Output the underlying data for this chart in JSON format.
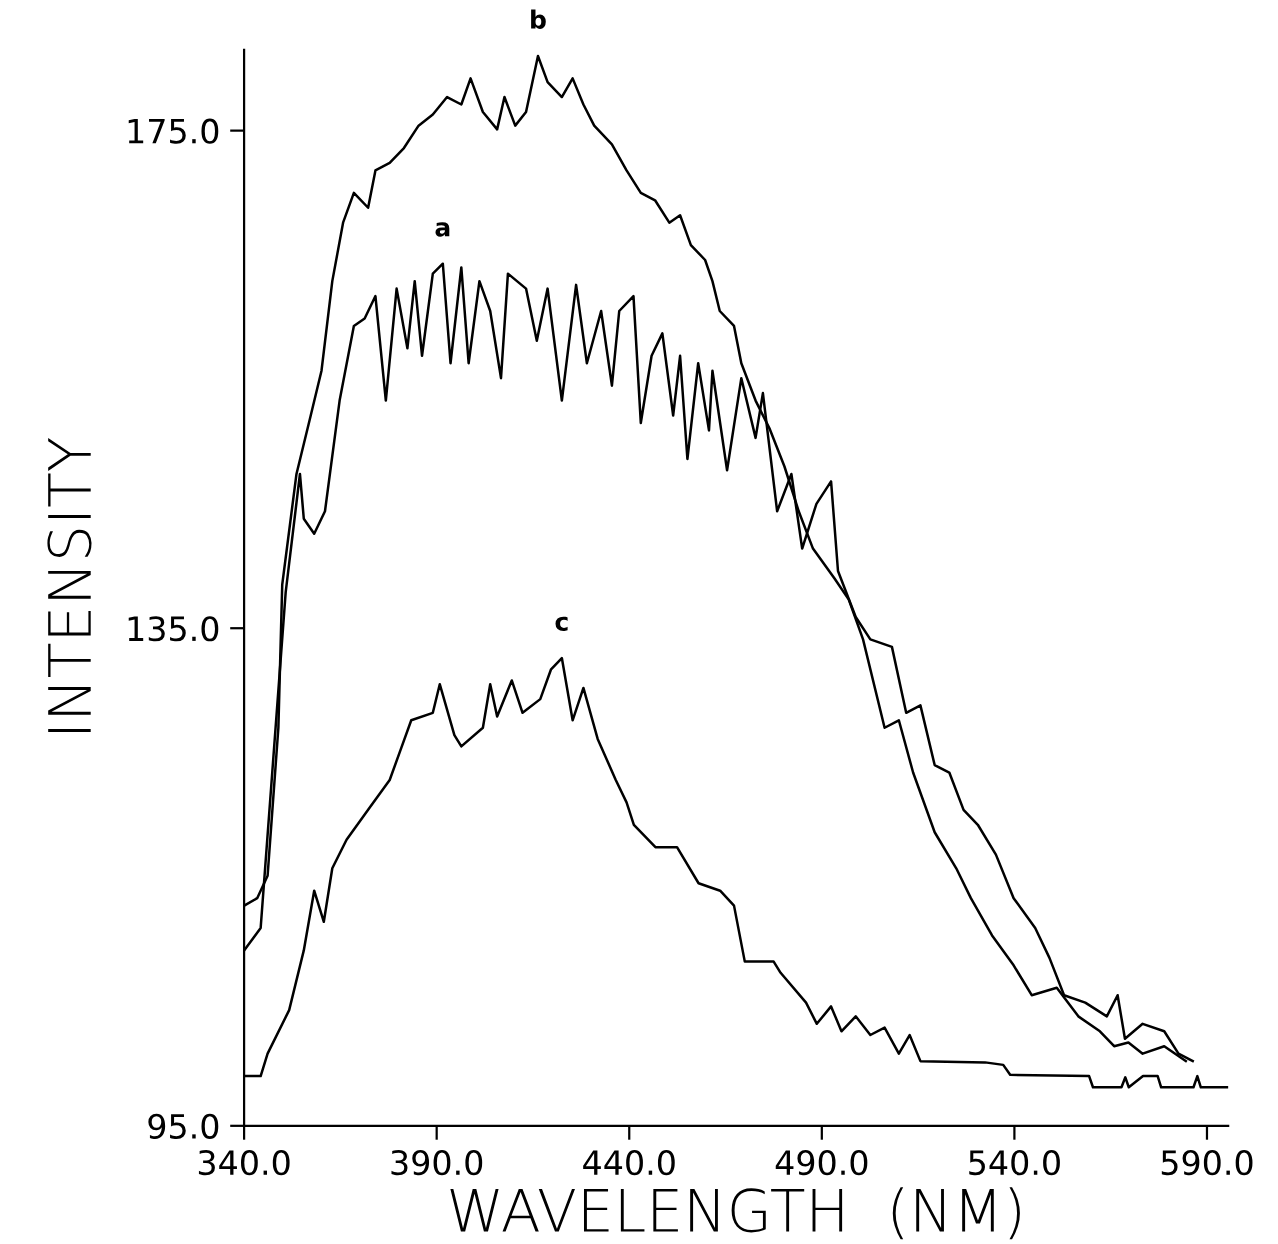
{
  "chart_data": {
    "type": "line",
    "xlabel": "WAVELENGTH  (NM)",
    "ylabel": "INTENSITY",
    "xlim": [
      340,
      595.5
    ],
    "ylim": [
      95,
      181.5
    ],
    "xticks": [
      {
        "value": 340,
        "label": "340.0"
      },
      {
        "value": 390,
        "label": "390.0"
      },
      {
        "value": 440,
        "label": "440.0"
      },
      {
        "value": 490,
        "label": "490.0"
      },
      {
        "value": 540,
        "label": "540.0"
      },
      {
        "value": 590,
        "label": "590.0"
      }
    ],
    "yticks": [
      {
        "value": 95,
        "label": "95.0"
      },
      {
        "value": 135,
        "label": "135.0"
      },
      {
        "value": 175,
        "label": "175.0"
      }
    ],
    "grid": false,
    "marker": "none",
    "line_style": "solid",
    "series": [
      {
        "name": "a",
        "color": "#000000",
        "x": [
          340,
          344.3,
          350.8,
          354.5,
          355.5,
          358.2,
          361.0,
          364.8,
          368.5,
          371.3,
          374.1,
          376.8,
          379.6,
          382.4,
          384.3,
          386.2,
          389.0,
          391.6,
          393.6,
          396.4,
          398.3,
          401.1,
          403.9,
          406.7,
          408.5,
          413.2,
          416.0,
          418.8,
          422.5,
          426.2,
          429.0,
          432.7,
          435.5,
          437.4,
          441.1,
          443.0,
          445.8,
          448.6,
          451.4,
          453.2,
          455.1,
          457.9,
          460.7,
          461.6,
          465.4,
          469.1,
          472.8,
          474.7,
          478.4,
          482.1,
          484.9,
          488.6,
          492.4,
          494.2,
          498.8,
          502.6,
          508.2,
          511.9,
          515.6,
          519.3,
          523.1,
          526.8,
          530.5,
          535.2,
          539.8,
          545.4,
          549.1,
          552.9,
          558.4,
          564.0,
          566.8,
          568.7,
          573.3,
          578.9,
          582.6,
          586.3
        ],
        "values": [
          109.1,
          110.9,
          137.9,
          147.4,
          143.8,
          142.6,
          144.4,
          153.3,
          159.3,
          159.9,
          161.7,
          153.3,
          162.3,
          157.5,
          162.9,
          156.9,
          163.5,
          164.3,
          156.3,
          164.0,
          156.3,
          162.9,
          160.5,
          155.1,
          163.5,
          162.3,
          158.1,
          162.3,
          153.3,
          162.6,
          156.3,
          160.5,
          154.5,
          160.5,
          161.7,
          151.5,
          156.9,
          158.7,
          152.1,
          156.9,
          148.6,
          156.3,
          150.9,
          155.7,
          147.7,
          155.1,
          150.3,
          153.9,
          144.4,
          147.4,
          141.4,
          145.0,
          146.8,
          139.6,
          135.9,
          134.1,
          133.5,
          128.2,
          128.8,
          124.0,
          123.4,
          120.4,
          119.2,
          116.8,
          113.3,
          110.9,
          108.5,
          105.5,
          104.9,
          103.8,
          105.5,
          102.0,
          103.2,
          102.6,
          100.8,
          100.2
        ]
      },
      {
        "name": "b",
        "color": "#000000",
        "x": [
          340,
          343.4,
          346.1,
          348.9,
          349.9,
          353.6,
          357.3,
          360.1,
          362.9,
          365.7,
          368.5,
          372.2,
          374.1,
          377.8,
          381.5,
          385.3,
          389.0,
          392.7,
          396.4,
          398.8,
          402.0,
          405.7,
          407.6,
          410.4,
          413.2,
          416.3,
          418.8,
          422.5,
          425.3,
          428.1,
          430.9,
          435.5,
          439.3,
          443.0,
          446.7,
          450.4,
          453.2,
          456.0,
          459.7,
          461.6,
          463.5,
          467.2,
          469.1,
          472.8,
          476.5,
          480.3,
          484.0,
          487.7,
          493.3,
          497.0,
          500.7,
          506.3,
          510.0,
          513.7,
          519.3,
          524.9,
          528.7,
          534.2,
          539.8,
          544.5,
          551.0,
          556.6,
          562.2,
          565.9,
          569.6,
          573.3,
          578.9,
          584.5
        ],
        "values": [
          112.7,
          113.3,
          115.1,
          127.0,
          138.5,
          147.4,
          152.1,
          155.7,
          162.9,
          167.6,
          170.0,
          168.8,
          171.8,
          172.4,
          173.6,
          175.4,
          176.3,
          177.7,
          177.1,
          179.2,
          176.5,
          175.1,
          177.7,
          175.4,
          176.5,
          181.0,
          178.9,
          177.7,
          179.2,
          177.1,
          175.4,
          173.9,
          171.8,
          170.0,
          169.4,
          167.6,
          168.2,
          165.8,
          164.6,
          162.9,
          160.5,
          159.3,
          156.3,
          153.3,
          151.0,
          148.0,
          144.4,
          141.4,
          139.0,
          137.3,
          134.1,
          127.0,
          127.6,
          123.4,
          118.6,
          115.7,
          113.3,
          110.3,
          107.9,
          105.5,
          106.1,
          103.8,
          102.6,
          101.4,
          101.7,
          100.8,
          101.4,
          100.2
        ]
      },
      {
        "name": "c",
        "color": "#000000",
        "x": [
          340,
          344.3,
          346.1,
          351.7,
          355.5,
          358.2,
          360.7,
          362.9,
          366.6,
          372.2,
          377.8,
          380.6,
          383.4,
          389.0,
          390.8,
          394.6,
          396.4,
          402.0,
          403.9,
          405.7,
          409.5,
          412.3,
          416.9,
          419.7,
          422.5,
          425.3,
          428.1,
          431.8,
          436.5,
          439.3,
          441.2,
          446.8,
          452.4,
          458.0,
          463.6,
          467.2,
          470.0,
          477.5,
          479.3,
          485.9,
          488.7,
          492.4,
          495.1,
          498.8,
          502.6,
          506.3,
          510.0,
          512.8,
          515.6,
          532.4,
          537.1,
          538.9,
          559.4,
          560.4,
          567.8,
          568.8,
          569.7,
          573.4,
          577.2,
          578.1,
          586.5,
          587.5,
          588.4,
          595.5
        ],
        "values": [
          99.0,
          99.0,
          100.8,
          104.3,
          109.1,
          113.9,
          111.4,
          115.7,
          118.0,
          120.4,
          122.8,
          125.2,
          127.6,
          128.2,
          130.5,
          126.4,
          125.5,
          127.0,
          130.5,
          127.9,
          130.8,
          128.2,
          129.3,
          131.7,
          132.6,
          127.6,
          130.2,
          126.1,
          122.8,
          121.0,
          119.2,
          117.4,
          117.4,
          114.5,
          113.9,
          112.7,
          108.2,
          108.2,
          107.3,
          104.9,
          103.2,
          104.6,
          102.6,
          103.8,
          102.3,
          102.9,
          100.8,
          102.3,
          100.2,
          100.1,
          99.9,
          99.1,
          99.0,
          98.1,
          98.1,
          98.9,
          98.1,
          99.0,
          99.0,
          98.1,
          98.1,
          99.0,
          98.1,
          98.1
        ]
      }
    ]
  }
}
